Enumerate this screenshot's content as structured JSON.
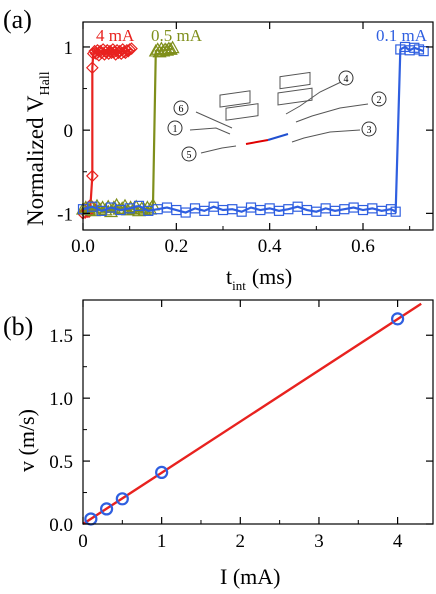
{
  "colors": {
    "red": "#e8221f",
    "olive": "#7f8f1b",
    "blue": "#2f5fe0",
    "axis": "#000000",
    "inset": "#555555",
    "inset_red": "#e00000",
    "inset_blue": "#2050d0"
  },
  "chart_data": [
    {
      "panel": "(a)",
      "type": "scatter",
      "xlabel": {
        "main": "t",
        "sub": "int",
        "unit": "(ms)"
      },
      "ylabel": {
        "main": "Normalized  V",
        "sub": "Hall"
      },
      "xlim": [
        0.0,
        0.75
      ],
      "ylim": [
        -1.2,
        1.3
      ],
      "xticks": [
        0.0,
        0.2,
        0.4,
        0.6
      ],
      "xtick_labels": [
        "0.0",
        "0.2",
        "0.4",
        "0.6"
      ],
      "yticks": [
        1,
        0,
        -1
      ],
      "ytick_labels": [
        "1",
        "0",
        "-1"
      ],
      "grid": false,
      "series": [
        {
          "name": "4 mA",
          "color_key": "red",
          "marker": "diamond",
          "switch_time": 0.02,
          "x": [
            0.0,
            0.005,
            0.01,
            0.013,
            0.016,
            0.02,
            0.02,
            0.022,
            0.025,
            0.028,
            0.031,
            0.034,
            0.037,
            0.04,
            0.043,
            0.046,
            0.049,
            0.052,
            0.055,
            0.058,
            0.061,
            0.064,
            0.067,
            0.07,
            0.073,
            0.076,
            0.079,
            0.082,
            0.085,
            0.088,
            0.091,
            0.094,
            0.097,
            0.1,
            0.104
          ],
          "y": [
            -1.0,
            -0.99,
            -0.98,
            -0.98,
            -0.9,
            -0.55,
            0.75,
            0.92,
            0.95,
            0.92,
            0.96,
            0.9,
            0.95,
            0.93,
            0.97,
            0.91,
            0.94,
            0.96,
            0.92,
            0.95,
            0.93,
            0.97,
            0.94,
            0.91,
            0.96,
            0.93,
            0.95,
            0.92,
            0.97,
            0.94,
            0.93,
            0.96,
            0.95,
            0.97,
            0.98
          ]
        },
        {
          "name": "0.5 mA",
          "color_key": "olive",
          "marker": "triangle",
          "switch_time": 0.15,
          "x": [
            0.0,
            0.006,
            0.012,
            0.018,
            0.024,
            0.03,
            0.036,
            0.042,
            0.048,
            0.054,
            0.06,
            0.066,
            0.072,
            0.078,
            0.084,
            0.09,
            0.096,
            0.102,
            0.108,
            0.114,
            0.12,
            0.126,
            0.132,
            0.138,
            0.144,
            0.15,
            0.156,
            0.16,
            0.164,
            0.168,
            0.172,
            0.176,
            0.18,
            0.184,
            0.188,
            0.192
          ],
          "y": [
            -0.95,
            -0.93,
            -0.96,
            -0.92,
            -0.97,
            -0.91,
            -0.95,
            -0.93,
            -0.96,
            -0.92,
            -0.98,
            -0.93,
            -0.9,
            -0.95,
            -0.94,
            -0.91,
            -0.96,
            -0.93,
            -0.95,
            -0.92,
            -0.97,
            -0.94,
            -0.96,
            -0.93,
            -0.95,
            -0.9,
            0.95,
            0.97,
            0.94,
            0.98,
            0.95,
            0.97,
            0.96,
            0.98,
            0.97,
            0.99
          ]
        },
        {
          "name": "0.1 mA",
          "color_key": "blue",
          "marker": "square",
          "switch_time": 0.67,
          "x": [
            0.0,
            0.02,
            0.04,
            0.06,
            0.08,
            0.1,
            0.12,
            0.14,
            0.16,
            0.18,
            0.2,
            0.22,
            0.24,
            0.26,
            0.28,
            0.3,
            0.32,
            0.34,
            0.36,
            0.38,
            0.4,
            0.42,
            0.44,
            0.46,
            0.48,
            0.5,
            0.52,
            0.54,
            0.56,
            0.58,
            0.6,
            0.62,
            0.64,
            0.66,
            0.67,
            0.68,
            0.69,
            0.7,
            0.71,
            0.72,
            0.73
          ],
          "y": [
            -0.95,
            -0.92,
            -0.97,
            -0.93,
            -0.96,
            -0.94,
            -0.91,
            -0.97,
            -0.95,
            -0.93,
            -0.96,
            -0.99,
            -0.94,
            -0.97,
            -0.92,
            -0.96,
            -0.95,
            -0.98,
            -0.93,
            -0.96,
            -0.94,
            -0.97,
            -0.95,
            -0.92,
            -0.96,
            -0.98,
            -0.94,
            -0.97,
            -0.95,
            -0.93,
            -0.96,
            -0.94,
            -0.97,
            -0.95,
            -0.98,
            0.97,
            1.0,
            0.96,
            0.99,
            0.97,
            0.95
          ]
        }
      ],
      "inset_labels": [
        "1",
        "2",
        "3",
        "4",
        "5",
        "6"
      ]
    },
    {
      "panel": "(b)",
      "type": "scatter",
      "xlabel": "I (mA)",
      "ylabel": "v (m/s)",
      "xlim": [
        0,
        4.45
      ],
      "ylim": [
        0.0,
        1.78
      ],
      "xticks": [
        0,
        1,
        2,
        3,
        4
      ],
      "xtick_labels": [
        "0",
        "1",
        "2",
        "3",
        "4"
      ],
      "yticks": [
        0.0,
        0.5,
        1.0,
        1.5
      ],
      "ytick_labels": [
        "0.0",
        "0.5",
        "1.0",
        "1.5"
      ],
      "grid": false,
      "points": {
        "color_key": "blue",
        "marker": "circle",
        "x": [
          0.1,
          0.3,
          0.5,
          1.0,
          4.0
        ],
        "y": [
          0.04,
          0.12,
          0.2,
          0.41,
          1.63
        ]
      },
      "fit": {
        "color_key": "red",
        "x": [
          0.0,
          4.3
        ],
        "y": [
          0.0,
          1.75
        ]
      }
    }
  ]
}
